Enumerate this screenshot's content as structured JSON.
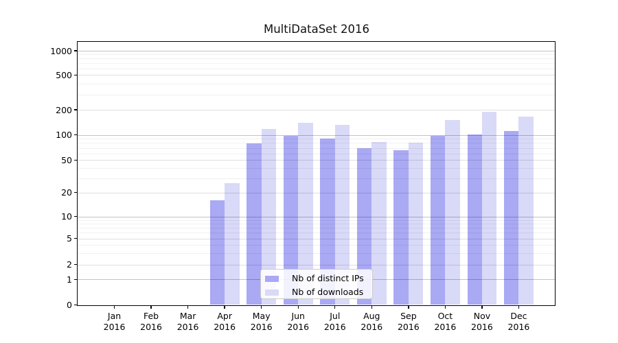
{
  "chart_data": {
    "type": "bar",
    "title": "MultiDataSet 2016",
    "categories": [
      "Jan",
      "Feb",
      "Mar",
      "Apr",
      "May",
      "Jun",
      "Jul",
      "Aug",
      "Sep",
      "Oct",
      "Nov",
      "Dec"
    ],
    "category_year": "2016",
    "series": [
      {
        "name": "Nb of distinct IPs",
        "color": "#a9a9f4",
        "values": [
          0,
          0,
          0,
          16,
          79,
          98,
          91,
          70,
          66,
          98,
          101,
          112
        ]
      },
      {
        "name": "Nb of downloads",
        "color": "#d9d9f8",
        "values": [
          0,
          0,
          0,
          26,
          118,
          139,
          131,
          83,
          80,
          152,
          190,
          165
        ]
      }
    ],
    "y_axis": {
      "scale": "symlog",
      "ticks": [
        0,
        1,
        2,
        5,
        10,
        20,
        50,
        100,
        200,
        500,
        1000
      ],
      "minor_tick_pattern": [
        3,
        4,
        6,
        7,
        8,
        9
      ],
      "top_value": 1000
    },
    "x_axis": {
      "tick_count": 12
    },
    "legend": {
      "position": "lower-center"
    },
    "grid": true,
    "colors": {
      "background": "#ffffff",
      "spine": "#000000",
      "grid_decade": "#c3c3c3",
      "grid_major": "#dedede",
      "grid_minor": "#f1f1f1"
    }
  }
}
